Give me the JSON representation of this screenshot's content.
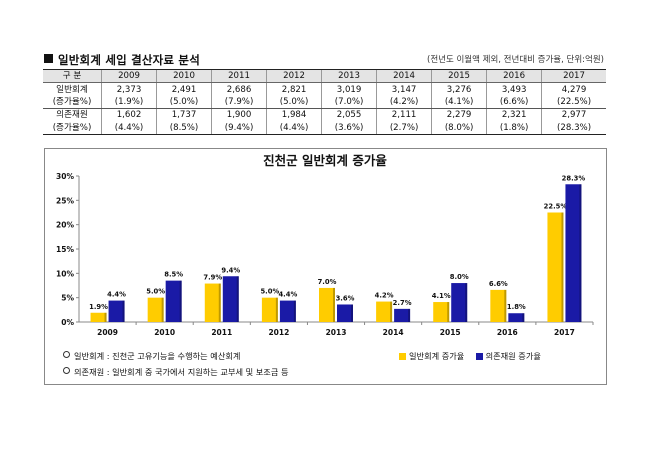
{
  "heading": {
    "title": "일반회계 세입 결산자료 분석",
    "note": "(전년도 이월액 제외, 전년대비 증가율, 단위:억원)"
  },
  "table": {
    "header_label": "구  분",
    "years": [
      "2009",
      "2010",
      "2011",
      "2012",
      "2013",
      "2014",
      "2015",
      "2016",
      "2017"
    ],
    "rows": [
      {
        "label": "일반회계",
        "cells": [
          "2,373",
          "2,491",
          "2,686",
          "2,821",
          "3,019",
          "3,147",
          "3,276",
          "3,493",
          "4,279"
        ]
      },
      {
        "label": "(증가율%)",
        "cells": [
          "(1.9%)",
          "(5.0%)",
          "(7.9%)",
          "(5.0%)",
          "(7.0%)",
          "(4.2%)",
          "(4.1%)",
          "(6.6%)",
          "(22.5%)"
        ]
      },
      {
        "label": "의존재원",
        "cells": [
          "1,602",
          "1,737",
          "1,900",
          "1,984",
          "2,055",
          "2,111",
          "2,279",
          "2,321",
          "2,977"
        ]
      },
      {
        "label": "(증가율%)",
        "cells": [
          "(4.4%)",
          "(8.5%)",
          "(9.4%)",
          "(4.4%)",
          "(3.6%)",
          "(2.7%)",
          "(8.0%)",
          "(1.8%)",
          "(28.3%)"
        ]
      }
    ]
  },
  "chart_data": {
    "type": "bar",
    "title": "진천군 일반회계 증가율",
    "categories": [
      "2009",
      "2010",
      "2011",
      "2012",
      "2013",
      "2014",
      "2015",
      "2016",
      "2017"
    ],
    "series": [
      {
        "name": "일반회계 증가율",
        "color": "#ffcc00",
        "values": [
          1.9,
          5.0,
          7.9,
          5.0,
          7.0,
          4.2,
          4.1,
          6.6,
          22.5
        ],
        "labels": [
          "1.9%",
          "5.0%",
          "7.9%",
          "5.0%",
          "7.0%",
          "4.2%",
          "4.1%",
          "6.6%",
          "22.5%"
        ]
      },
      {
        "name": "의존재원 증가율",
        "color": "#1a1aa6",
        "values": [
          4.4,
          8.5,
          9.4,
          4.4,
          3.6,
          2.7,
          8.0,
          1.8,
          28.3
        ],
        "labels": [
          "4.4%",
          "8.5%",
          "9.4%",
          "4.4%",
          "3.6%",
          "2.7%",
          "8.0%",
          "1.8%",
          "28.3%"
        ]
      }
    ],
    "ylim": [
      0,
      30
    ],
    "yticks": [
      "0%",
      "5%",
      "10%",
      "15%",
      "20%",
      "25%",
      "30%"
    ],
    "ytick_values": [
      0,
      5,
      10,
      15,
      20,
      25,
      30
    ],
    "grid": false,
    "legend_position": "bottom-right"
  },
  "notes": [
    "일반회계 : 진천군 고유기능을 수행하는 예산회계",
    "의존재원 : 일반회계 중 국가에서 지원하는 교부세 및 보조금 등"
  ]
}
